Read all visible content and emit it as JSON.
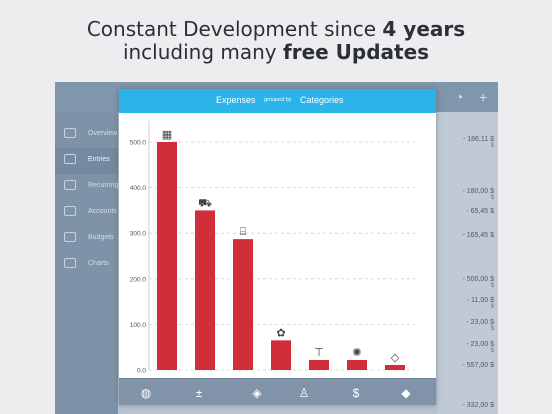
{
  "headline": {
    "line1_prefix": "Constant Development since ",
    "line1_bold": "4 years",
    "line2_prefix": "including many ",
    "line2_bold": "free Updates"
  },
  "background_app": {
    "sidebar": [
      {
        "label": "Overview",
        "icon": "overview-icon"
      },
      {
        "label": "Entries",
        "icon": "list-icon",
        "active": true
      },
      {
        "label": "Recurring",
        "icon": "recurring-icon"
      },
      {
        "label": "Accounts",
        "icon": "accounts-icon"
      },
      {
        "label": "Budgets",
        "icon": "check-icon"
      },
      {
        "label": "Charts",
        "icon": "chart-icon"
      }
    ],
    "amounts": [
      {
        "value": "- 186,11 $",
        "cur": "$"
      },
      {
        "value": "- 180,00 $",
        "cur": "$"
      },
      {
        "value": "- 65,45 $",
        "cur": ""
      },
      {
        "value": "- 165,45 $",
        "cur": ""
      },
      {
        "value": "- 500,00 $",
        "cur": "$"
      },
      {
        "value": "- 11,00 $",
        "cur": "$"
      },
      {
        "value": "- 23,00 $",
        "cur": "$"
      },
      {
        "value": "- 23,00 $",
        "cur": "$"
      },
      {
        "value": "- 557,00 $",
        "cur": ""
      },
      {
        "value": "- 332,00 $",
        "cur": ""
      }
    ]
  },
  "modal": {
    "title_left": "Expenses",
    "title_mid": "grouped by",
    "title_right": "Categories",
    "footer_icons": [
      "globe-icon",
      "plus-minus-icon",
      "tag-icon",
      "person-icon",
      "dollar-icon",
      "tag-fill-icon"
    ],
    "footer_glyphs": [
      "◍",
      "±",
      "◈",
      "♙",
      "$",
      "◆"
    ]
  },
  "chart_data": {
    "type": "bar",
    "categories": [
      "building-icon",
      "car-icon",
      "sofa-icon",
      "paw-icon",
      "tshirt-icon",
      "bee-icon",
      "tag-icon"
    ],
    "values": [
      500,
      350,
      287,
      65,
      22,
      22,
      11
    ],
    "yticks": [
      "0.0",
      "100.0",
      "200.0",
      "300.0",
      "400.0",
      "500.0"
    ],
    "ylim": [
      0,
      500
    ],
    "bar_color": "#d12e3a",
    "grid": true,
    "title": "",
    "xlabel": "",
    "ylabel": ""
  },
  "colors": {
    "header": "#2bb4ea",
    "footer": "#8193a8",
    "bar": "#d12e3a"
  }
}
